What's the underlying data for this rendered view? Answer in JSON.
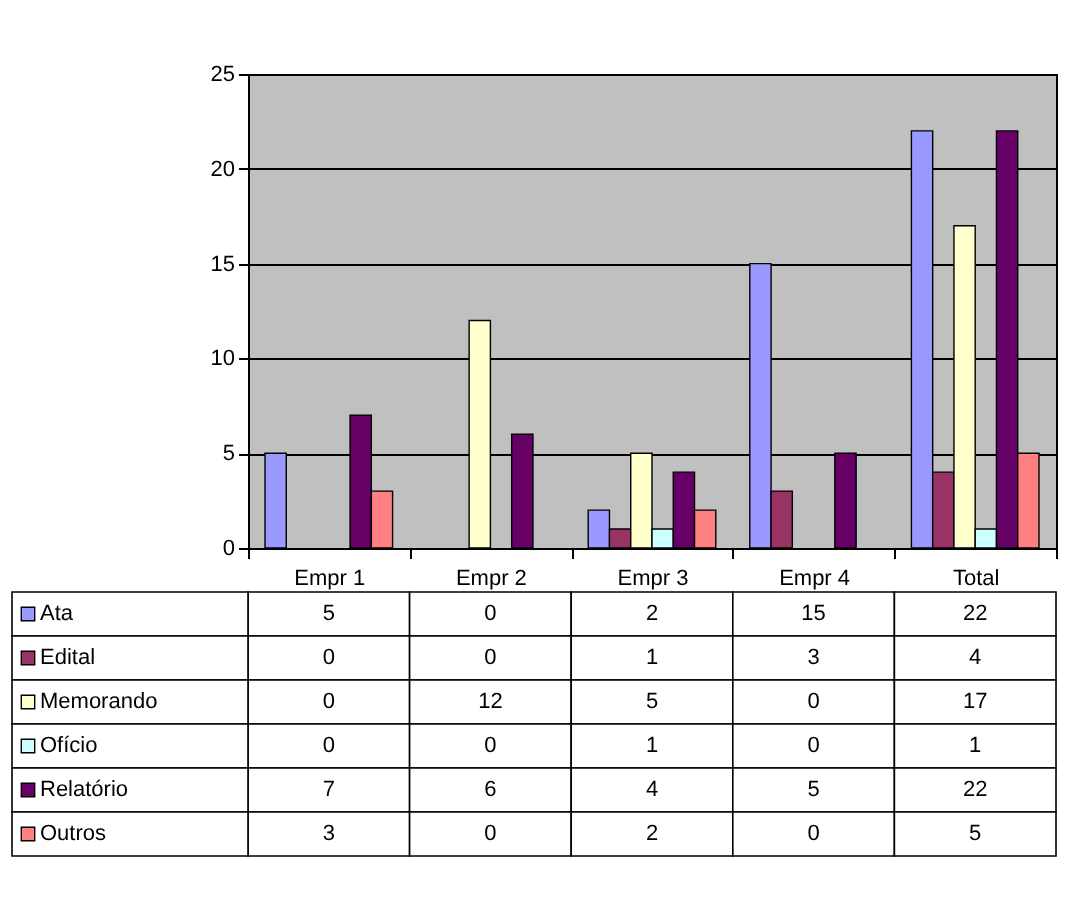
{
  "chart_data": {
    "type": "bar",
    "categories": [
      "Empr 1",
      "Empr 2",
      "Empr 3",
      "Empr 4",
      "Total"
    ],
    "series": [
      {
        "name": "Ata",
        "color": "#9999ff",
        "values": [
          5,
          0,
          2,
          15,
          22
        ]
      },
      {
        "name": "Edital",
        "color": "#993366",
        "values": [
          0,
          0,
          1,
          3,
          4
        ]
      },
      {
        "name": "Memorando",
        "color": "#ffffcc",
        "values": [
          0,
          12,
          5,
          0,
          17
        ]
      },
      {
        "name": "Ofício",
        "color": "#ccffff",
        "values": [
          0,
          0,
          1,
          0,
          1
        ]
      },
      {
        "name": "Relatório",
        "color": "#660066",
        "values": [
          7,
          6,
          4,
          5,
          22
        ]
      },
      {
        "name": "Outros",
        "color": "#ff8080",
        "values": [
          3,
          0,
          2,
          0,
          5
        ]
      }
    ],
    "ylim": [
      0,
      25
    ],
    "yticks": [
      0,
      5,
      10,
      15,
      20,
      25
    ],
    "grid": "y",
    "legend": "bottom",
    "data_labels": true
  }
}
